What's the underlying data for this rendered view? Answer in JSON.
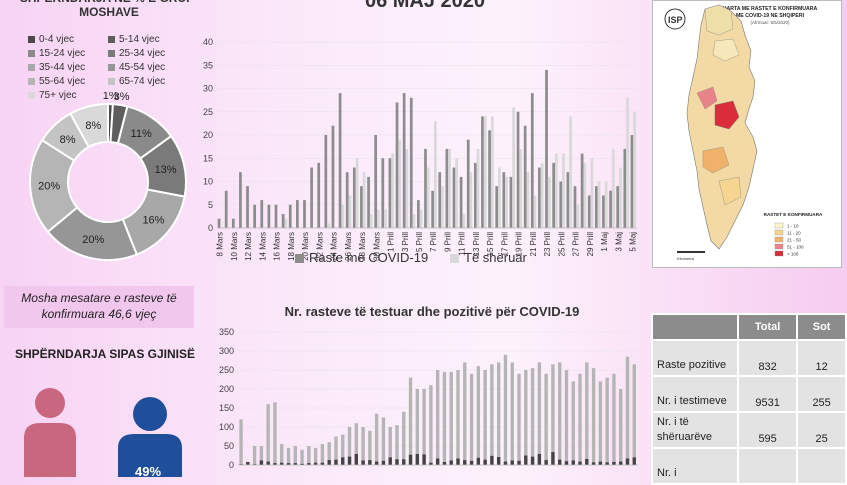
{
  "header": {
    "date_title": "06 MAJ 2020",
    "age_title": "SHPËRNDARJA NË % E GRUP-MOSHAVE",
    "gender_title": "SHPËRNDARJA SIPAS GJINISË",
    "avg_age_text": "Mosha mesatare e rasteve të konfirmuara 46,6 vjeç"
  },
  "age_legend": [
    {
      "label": "0-4 vjec",
      "color": "#4a4a4a"
    },
    {
      "label": "5-14 vjec",
      "color": "#5e5e5e"
    },
    {
      "label": "15-24 vjec",
      "color": "#8a8a8a"
    },
    {
      "label": "25-34 vjec",
      "color": "#7a7a7a"
    },
    {
      "label": "35-44 vjec",
      "color": "#a8a8a8"
    },
    {
      "label": "45-54 vjec",
      "color": "#969696"
    },
    {
      "label": "55-64 vjec",
      "color": "#b5b5b5"
    },
    {
      "label": "65-74 vjec",
      "color": "#c4c4c4"
    },
    {
      "label": "75+ vjec",
      "color": "#d9d9d9"
    }
  ],
  "chart_data": [
    {
      "type": "pie",
      "variant": "donut",
      "title": "SHPËRNDARJA NË % E GRUP-MOSHAVE",
      "labels": [
        "0-4 vjec",
        "5-14 vjec",
        "15-24 vjec",
        "25-34 vjec",
        "35-44 vjec",
        "45-54 vjec",
        "55-64 vjec",
        "65-74 vjec",
        "75+ vjec"
      ],
      "values": [
        1,
        3,
        11,
        13,
        16,
        20,
        20,
        8,
        8
      ],
      "value_labels": [
        "1%",
        "3%",
        "11%",
        "13%",
        "16%",
        "20%",
        "20%",
        "8%",
        "8%"
      ],
      "colors": [
        "#4a4a4a",
        "#5e5e5e",
        "#8a8a8a",
        "#7a7a7a",
        "#a8a8a8",
        "#969696",
        "#b5b5b5",
        "#c4c4c4",
        "#d9d9d9"
      ]
    },
    {
      "type": "bar",
      "title": "",
      "ylim": [
        0,
        40
      ],
      "yticks": [
        0,
        5,
        10,
        15,
        20,
        25,
        30,
        35,
        40
      ],
      "x": [
        "8 Mars",
        "9 Mars",
        "10 Mars",
        "11 Mars",
        "12 Mars",
        "13 Mars",
        "14 Mars",
        "15 Mars",
        "16 Mars",
        "17 Mars",
        "18 Mars",
        "19 Mars",
        "20 Mars",
        "21 Mars",
        "22 Mars",
        "23 Mars",
        "24 Mars",
        "25 Mars",
        "26 Mars",
        "27 Mars",
        "28 Mars",
        "29 Mars",
        "30 Mars",
        "31 Mars",
        "1 Prill",
        "2 Prill",
        "3 Prill",
        "4 Prill",
        "5 Prill",
        "6 Prill",
        "7 Prill",
        "8 Prill",
        "9 Prill",
        "10 Prill",
        "11 Prill",
        "12 Prill",
        "13 Prill",
        "14 Prill",
        "15 Prill",
        "16 Prill",
        "17 Prill",
        "18 Prill",
        "19 Prill",
        "20 Prill",
        "21 Prill",
        "22 Prill",
        "23 Prill",
        "24 Prill",
        "25 Prill",
        "26 Prill",
        "27 Prill",
        "28 Prill",
        "29 Prill",
        "30 Prill",
        "1 Maj",
        "2 Maj",
        "3 Maj",
        "4 Maj",
        "5 Maj"
      ],
      "xtick_labels": [
        "8 Mars",
        "10 Mars",
        "12 Mars",
        "14 Mars",
        "16 Mars",
        "18 Mars",
        "20 Mars",
        "22 Mars",
        "24 Mars",
        "26 Mars",
        "28 Mars",
        "30 Mars",
        "1 Prill",
        "3 Prill",
        "5 Prill",
        "7 Prill",
        "9 Prill",
        "11 Prill",
        "13 Prill",
        "15 Prill",
        "17 Prill",
        "19 Prill",
        "21 Prill",
        "23 Prill",
        "25 Prill",
        "27 Prill",
        "29 Prill",
        "1 Maj",
        "3 Maj",
        "5 Maj"
      ],
      "series": [
        {
          "name": "Raste me COVID-19",
          "color": "#8c8c8c",
          "values": [
            2,
            8,
            2,
            12,
            9,
            5,
            6,
            5,
            5,
            3,
            5,
            6,
            6,
            13,
            14,
            20,
            22,
            29,
            12,
            13,
            9,
            11,
            20,
            15,
            15,
            27,
            29,
            28,
            6,
            17,
            8,
            12,
            17,
            13,
            11,
            19,
            14,
            24,
            21,
            9,
            12,
            11,
            25,
            22,
            29,
            13,
            34,
            14,
            10,
            12,
            9,
            16,
            7,
            9,
            7,
            8,
            9,
            17,
            20
          ],
          "recovered": [
            0,
            0,
            0,
            0,
            0,
            0,
            0,
            0,
            0,
            2,
            0,
            0,
            0,
            0,
            0,
            1,
            0,
            5,
            7,
            15,
            12,
            3,
            4,
            4,
            16,
            19,
            17,
            3,
            4,
            13,
            23,
            9,
            17,
            15,
            3,
            12,
            17,
            24,
            24,
            13,
            11,
            26,
            17,
            12,
            7,
            14,
            11,
            16,
            16,
            24,
            5,
            14,
            15,
            10,
            10,
            17,
            13,
            28,
            25
          ]
        },
        {
          "name": "Të shëruar",
          "color": "#d9d9d9"
        }
      ]
    },
    {
      "type": "bar",
      "title": "Nr. rasteve të testuar dhe pozitivë për COVID-19",
      "ylim": [
        0,
        350
      ],
      "yticks": [
        0,
        50,
        100,
        150,
        200,
        250,
        300,
        350
      ],
      "series": [
        {
          "name": "testuar",
          "color": "#b5b5b5",
          "values": [
            120,
            0,
            50,
            50,
            160,
            165,
            55,
            45,
            50,
            40,
            50,
            45,
            55,
            60,
            75,
            80,
            100,
            110,
            100,
            90,
            135,
            125,
            100,
            105,
            140,
            230,
            200,
            200,
            210,
            250,
            245,
            245,
            250,
            270,
            240,
            260,
            250,
            265,
            270,
            290,
            270,
            240,
            250,
            255,
            270,
            240,
            265,
            270,
            250,
            220,
            240,
            270,
            255,
            220,
            230,
            240,
            200,
            285,
            265
          ],
          "positive": [
            2,
            8,
            2,
            12,
            9,
            5,
            6,
            5,
            5,
            3,
            5,
            6,
            6,
            13,
            14,
            20,
            22,
            29,
            12,
            13,
            9,
            11,
            20,
            15,
            15,
            27,
            29,
            28,
            6,
            17,
            8,
            12,
            17,
            13,
            11,
            19,
            14,
            24,
            21,
            9,
            12,
            11,
            25,
            22,
            29,
            13,
            34,
            14,
            10,
            12,
            9,
            16,
            7,
            9,
            7,
            8,
            9,
            17,
            20
          ]
        }
      ]
    }
  ],
  "stats_table": {
    "headers": [
      "",
      "Total",
      "Sot"
    ],
    "rows": [
      {
        "label": "Raste pozitive",
        "total": "832",
        "today": "12"
      },
      {
        "label": "Nr. i testimeve",
        "total": "9531",
        "today": "255"
      },
      {
        "label": "Nr. i të shëruarëve",
        "total": "595",
        "today": "25"
      },
      {
        "label": "Nr. i",
        "total": "",
        "today": ""
      }
    ]
  },
  "map": {
    "title": "HARTA ME RASTET E KONFIRMUARA ME COVID-19 NE SHQIPERI",
    "subtitle": "(Afrmuar: 5/5/2020)",
    "logo_text": "ISP",
    "legend_title": "RASTET E KONFIRMUARA",
    "legend_items": [
      "1 - 10",
      "11 - 20",
      "21 - 50",
      "51 - 100",
      "> 100"
    ],
    "legend_colors": [
      "#fdf5c9",
      "#f6d591",
      "#f0b26b",
      "#e8838a",
      "#d92d3a"
    ],
    "scale_label": "Kilometra"
  },
  "gender": {
    "male_pct": "49%"
  }
}
